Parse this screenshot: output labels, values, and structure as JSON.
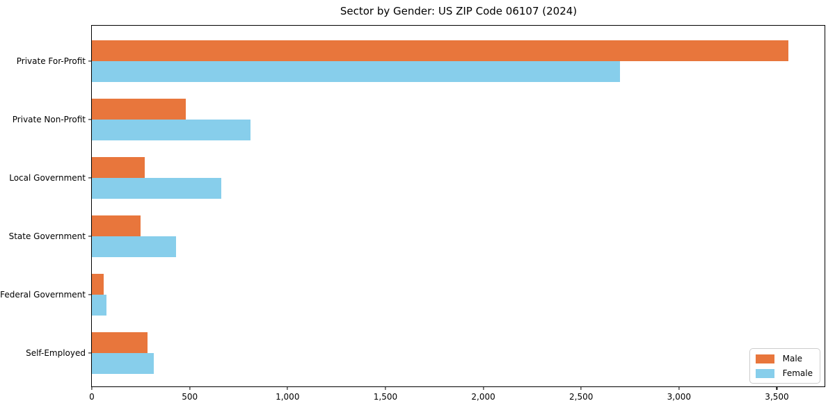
{
  "title": "Sector by Gender: US ZIP Code 06107 (2024)",
  "chart_data": {
    "type": "bar",
    "orientation": "horizontal",
    "title": "Sector by Gender: US ZIP Code 06107 (2024)",
    "xlabel": "",
    "ylabel": "",
    "categories": [
      "Private For-Profit",
      "Private Non-Profit",
      "Local Government",
      "State Government",
      "Federal Government",
      "Self-Employed"
    ],
    "series": [
      {
        "name": "Male",
        "color": "#e8763c",
        "values": [
          3560,
          480,
          270,
          250,
          60,
          285
        ]
      },
      {
        "name": "Female",
        "color": "#87ceeb",
        "values": [
          2700,
          810,
          660,
          430,
          75,
          315
        ]
      }
    ],
    "xlim": [
      0,
      3740
    ],
    "xticks": [
      0,
      500,
      1000,
      1500,
      2000,
      2500,
      3000,
      3500
    ],
    "xtick_labels": [
      "0",
      "500",
      "1,000",
      "1,500",
      "2,000",
      "2,500",
      "3,000",
      "3,500"
    ],
    "grid": false,
    "legend_position": "lower right",
    "legend": {
      "items": [
        {
          "label": "Male",
          "color": "#e8763c"
        },
        {
          "label": "Female",
          "color": "#87ceeb"
        }
      ]
    }
  }
}
